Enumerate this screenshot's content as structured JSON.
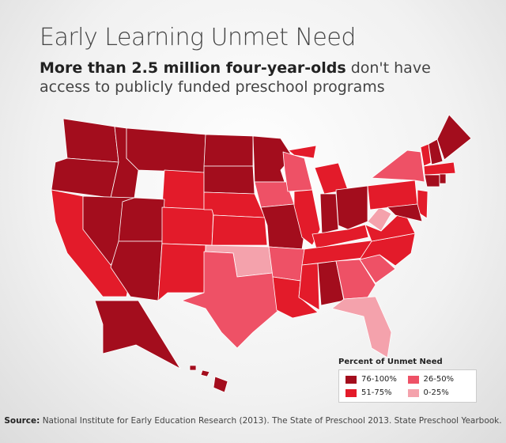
{
  "header": {
    "title": "Early Learning Unmet Need",
    "subtitle_bold": "More than 2.5 million four-year-olds",
    "subtitle_rest": "don't have access to publicly funded preschool programs"
  },
  "legend": {
    "title": "Percent of Unmet Need",
    "items": [
      {
        "label": "76-100%",
        "color": "#a30d1d"
      },
      {
        "label": "51-75%",
        "color": "#e31b2a"
      },
      {
        "label": "26-50%",
        "color": "#ee5166"
      },
      {
        "label": "0-25%",
        "color": "#f4a2ac"
      }
    ]
  },
  "source": {
    "label": "Source:",
    "text": "National Institute for Early Education Research (2013). The State of Preschool 2013. State Preschool Yearbook."
  }
}
